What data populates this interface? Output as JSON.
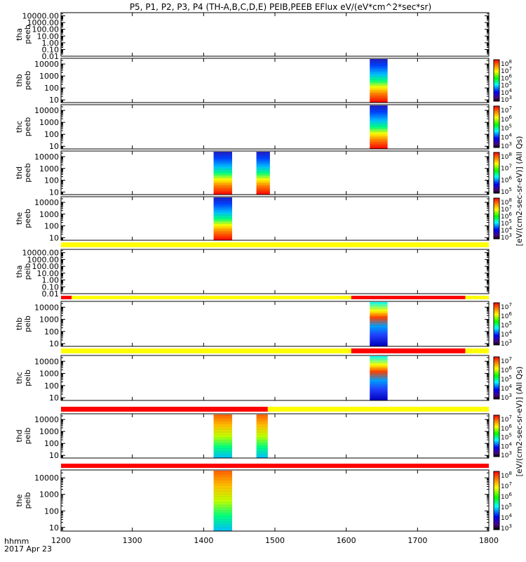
{
  "chart_data": {
    "type": "heatmap",
    "title": "P5, P1, P2, P3, P4 (TH-A,B,C,D,E) PEIB,PEEB EFlux eV/(eV*cm^2*sec*sr)",
    "xlabel_lines": [
      "hhmm",
      "2017 Apr 23"
    ],
    "xlim": [
      1200,
      1800
    ],
    "xticks": [
      "1200",
      "1300",
      "1400",
      "1500",
      "1600",
      "1700",
      "1800"
    ],
    "colors": {
      "yellow": "#ffff00",
      "red": "#ff0000",
      "black": "#000000"
    },
    "panels": [
      {
        "ylabel": [
          "tha",
          "peeb"
        ],
        "yscale": "log",
        "ylim": [
          0.01,
          30000
        ],
        "yticks": [
          "10000.00",
          "1000.00",
          "100.00",
          "10.00",
          "1.00",
          "0.10",
          "0.01"
        ],
        "yticks_val": [
          10000,
          1000,
          100,
          10,
          1,
          0.1,
          0.01
        ],
        "colorbar": null,
        "segments": [],
        "status_bar": null
      },
      {
        "ylabel": [
          "thb",
          "peeb"
        ],
        "yscale": "log",
        "ylim": [
          6,
          30000
        ],
        "yticks": [
          "10000",
          "1000",
          "100",
          "10"
        ],
        "yticks_val": [
          10000,
          1000,
          100,
          10
        ],
        "colorbar": {
          "labels": [
            "10^8",
            "10^7",
            "10^6",
            "10^5",
            "10^4",
            "10^3"
          ]
        },
        "segments": [
          {
            "start": 1633,
            "end": 1658,
            "pattern": "gradient"
          }
        ],
        "status_bar": null
      },
      {
        "ylabel": [
          "thc",
          "peeb"
        ],
        "yscale": "log",
        "ylim": [
          6,
          30000
        ],
        "yticks": [
          "10000",
          "1000",
          "100",
          "10"
        ],
        "yticks_val": [
          10000,
          1000,
          100,
          10
        ],
        "colorbar": {
          "labels": [
            "10^7",
            "10^6",
            "10^5",
            "10^4",
            "10^3"
          ]
        },
        "segments": [
          {
            "start": 1633,
            "end": 1658,
            "pattern": "gradient"
          }
        ],
        "status_bar": null
      },
      {
        "ylabel": [
          "thd",
          "peeb"
        ],
        "yscale": "log",
        "ylim": [
          6,
          30000
        ],
        "yticks": [
          "10000",
          "1000",
          "100",
          "10"
        ],
        "yticks_val": [
          10000,
          1000,
          100,
          10
        ],
        "colorbar": {
          "labels": [
            "10^8",
            "10^7",
            "10^6",
            "10^5"
          ]
        },
        "segments": [
          {
            "start": 1414,
            "end": 1440,
            "pattern": "gradient"
          },
          {
            "start": 1474,
            "end": 1493,
            "pattern": "gradient"
          }
        ],
        "status_bar": null
      },
      {
        "ylabel": [
          "the",
          "peeb"
        ],
        "yscale": "log",
        "ylim": [
          6,
          30000
        ],
        "yticks": [
          "10000",
          "1000",
          "100",
          "10"
        ],
        "yticks_val": [
          10000,
          1000,
          100,
          10
        ],
        "colorbar": {
          "labels": [
            "10^8",
            "10^7",
            "10^6",
            "10^5",
            "10^4",
            "10^3"
          ]
        },
        "segments": [
          {
            "start": 1414,
            "end": 1440,
            "pattern": "gradient"
          }
        ],
        "status_bar": [
          {
            "start": 1200,
            "end": 1800,
            "color": "yellow"
          }
        ]
      },
      {
        "ylabel": [
          "tha",
          "peib"
        ],
        "yscale": "log",
        "ylim": [
          0.01,
          30000
        ],
        "yticks": [
          "10000.00",
          "1000.00",
          "100.00",
          "10.00",
          "1.00",
          "0.10",
          "0.01"
        ],
        "yticks_val": [
          10000,
          1000,
          100,
          10,
          1,
          0.1,
          0.01
        ],
        "colorbar": null,
        "segments": [],
        "status_bar": [
          {
            "start": 1200,
            "end": 1215,
            "color": "red"
          },
          {
            "start": 1215,
            "end": 1607,
            "color": "yellow"
          },
          {
            "start": 1607,
            "end": 1767,
            "color": "red"
          },
          {
            "start": 1767,
            "end": 1800,
            "color": "yellow"
          }
        ]
      },
      {
        "ylabel": [
          "thb",
          "peib"
        ],
        "yscale": "log",
        "ylim": [
          6,
          30000
        ],
        "yticks": [
          "10000",
          "1000",
          "100",
          "10"
        ],
        "yticks_val": [
          10000,
          1000,
          100,
          10
        ],
        "colorbar": {
          "labels": [
            "10^7",
            "10^6",
            "10^5",
            "10^4",
            "10^3"
          ]
        },
        "segments": [
          {
            "start": 1633,
            "end": 1658,
            "pattern": "noisy"
          }
        ],
        "status_bar": [
          {
            "start": 1200,
            "end": 1607,
            "color": "yellow"
          },
          {
            "start": 1607,
            "end": 1767,
            "color": "red"
          },
          {
            "start": 1767,
            "end": 1800,
            "color": "yellow"
          }
        ]
      },
      {
        "ylabel": [
          "thc",
          "peib"
        ],
        "yscale": "log",
        "ylim": [
          6,
          30000
        ],
        "yticks": [
          "10000",
          "1000",
          "100",
          "10"
        ],
        "yticks_val": [
          10000,
          1000,
          100,
          10
        ],
        "colorbar": {
          "labels": [
            "10^7",
            "10^6",
            "10^5",
            "10^4",
            "10^3"
          ]
        },
        "segments": [
          {
            "start": 1633,
            "end": 1658,
            "pattern": "noisy"
          }
        ],
        "status_bar": [
          {
            "start": 1200,
            "end": 1490,
            "color": "red"
          },
          {
            "start": 1490,
            "end": 1800,
            "color": "yellow"
          }
        ]
      },
      {
        "ylabel": [
          "thd",
          "peib"
        ],
        "yscale": "log",
        "ylim": [
          6,
          30000
        ],
        "yticks": [
          "10000",
          "1000",
          "100",
          "10"
        ],
        "yticks_val": [
          10000,
          1000,
          100,
          10
        ],
        "colorbar": {
          "labels": [
            "10^7",
            "10^6",
            "10^5",
            "10^4",
            "10^3"
          ]
        },
        "segments": [
          {
            "start": 1414,
            "end": 1440,
            "pattern": "warm"
          },
          {
            "start": 1474,
            "end": 1490,
            "pattern": "warm"
          }
        ],
        "status_bar": [
          {
            "start": 1200,
            "end": 1800,
            "color": "red"
          }
        ]
      },
      {
        "ylabel": [
          "the",
          "peib"
        ],
        "yscale": "log",
        "ylim": [
          6,
          30000
        ],
        "yticks": [
          "10000",
          "1000",
          "100",
          "10"
        ],
        "yticks_val": [
          10000,
          1000,
          100,
          10
        ],
        "colorbar": {
          "labels": [
            "10^8",
            "10^7",
            "10^6",
            "10^5",
            "10^4",
            "10^3"
          ]
        },
        "segments": [
          {
            "start": 1414,
            "end": 1440,
            "pattern": "warm"
          }
        ],
        "status_bar": null
      }
    ],
    "colorbar_units_upper": "[eV/(cm2-sec-sr-eV)] (All Qs)",
    "colorbar_units_lower": "[eV/(cm2-sec-sr-eV)] (All Qs)"
  }
}
